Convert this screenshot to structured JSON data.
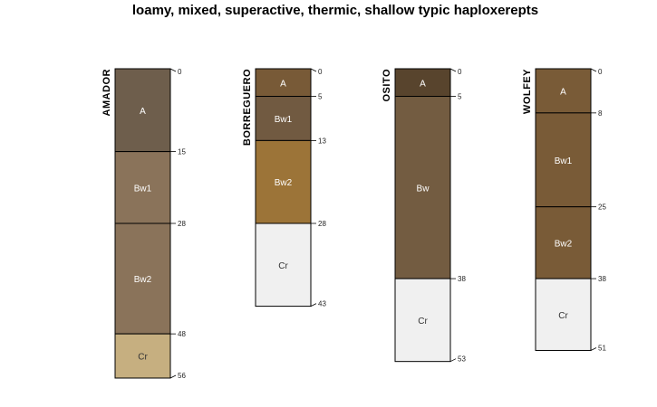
{
  "title": "loamy, mixed, superactive, thermic, shallow typic haploxerepts",
  "chart_data": {
    "type": "soil-profile",
    "depth_units": "cm",
    "profiles": [
      {
        "name": "AMADOR",
        "horizons": [
          {
            "label": "A",
            "top": 0,
            "bottom": 15,
            "color": "#6e5e4c",
            "text": "#ffffff"
          },
          {
            "label": "Bw1",
            "top": 15,
            "bottom": 28,
            "color": "#8a735a",
            "text": "#ffffff"
          },
          {
            "label": "Bw2",
            "top": 28,
            "bottom": 48,
            "color": "#8a735a",
            "text": "#ffffff"
          },
          {
            "label": "Cr",
            "top": 48,
            "bottom": 56,
            "color": "#c6af80",
            "text": "#333333"
          }
        ]
      },
      {
        "name": "BORREGUERO",
        "horizons": [
          {
            "label": "A",
            "top": 0,
            "bottom": 5,
            "color": "#785a37",
            "text": "#ffffff"
          },
          {
            "label": "Bw1",
            "top": 5,
            "bottom": 13,
            "color": "#715a41",
            "text": "#ffffff"
          },
          {
            "label": "Bw2",
            "top": 13,
            "bottom": 28,
            "color": "#9c7438",
            "text": "#ffffff"
          },
          {
            "label": "Cr",
            "top": 28,
            "bottom": 43,
            "color": "#f0f0f0",
            "text": "#333333"
          }
        ]
      },
      {
        "name": "OSITO",
        "horizons": [
          {
            "label": "A",
            "top": 0,
            "bottom": 5,
            "color": "#58442d",
            "text": "#ffffff"
          },
          {
            "label": "Bw",
            "top": 5,
            "bottom": 38,
            "color": "#735c41",
            "text": "#ffffff"
          },
          {
            "label": "Cr",
            "top": 38,
            "bottom": 53,
            "color": "#f0f0f0",
            "text": "#333333"
          }
        ]
      },
      {
        "name": "WOLFEY",
        "horizons": [
          {
            "label": "A",
            "top": 0,
            "bottom": 8,
            "color": "#795b37",
            "text": "#ffffff"
          },
          {
            "label": "Bw1",
            "top": 8,
            "bottom": 25,
            "color": "#795b37",
            "text": "#ffffff"
          },
          {
            "label": "Bw2",
            "top": 25,
            "bottom": 38,
            "color": "#795b37",
            "text": "#ffffff"
          },
          {
            "label": "Cr",
            "top": 38,
            "bottom": 51,
            "color": "#f0f0f0",
            "text": "#333333"
          }
        ]
      }
    ]
  }
}
